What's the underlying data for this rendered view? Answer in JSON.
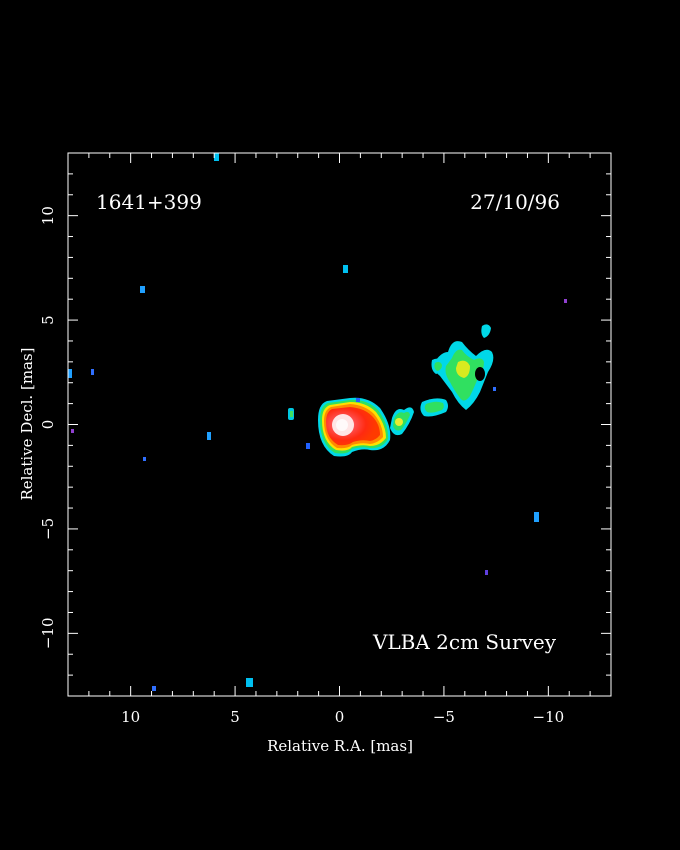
{
  "image": {
    "source_name": "1641+399",
    "date": "27/10/96",
    "survey": "VLBA 2cm Survey",
    "xlabel": "Relative R.A. [mas]",
    "ylabel": "Relative Decl. [mas]",
    "xlim": [
      13,
      -13
    ],
    "ylim": [
      -13,
      13
    ],
    "x_ticks": [
      10,
      5,
      0,
      -5,
      -10
    ],
    "y_ticks": [
      10,
      5,
      0,
      -5,
      -10
    ],
    "colors": {
      "background": "#000000",
      "frame": "#ffffff",
      "core_peak": "#fff4f4",
      "core_inner": "#ff6060",
      "core_mid": "#ff2a10",
      "core_outer": "#ffa000",
      "contour_yellow": "#ffff00",
      "contour_green": "#00e050",
      "contour_cyan": "#00d0f0",
      "noise_blue": "#3070ff",
      "noise_purple": "#9040d0"
    }
  }
}
